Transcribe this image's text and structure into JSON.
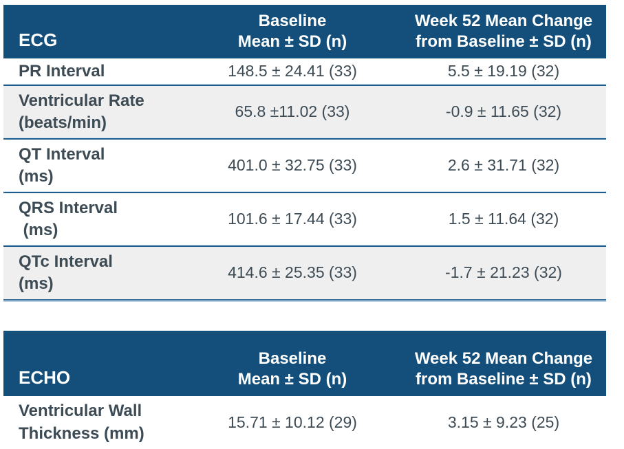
{
  "colors": {
    "header_bg": "#134F7A",
    "header_text": "#FFFFFF",
    "body_text": "#3D4B55",
    "stripe_bg": "#EFEFEF",
    "row_divider": "#1E5C8C",
    "table_bottom_border": "#356E9B"
  },
  "tables": [
    {
      "title": "ECG",
      "header": {
        "col1": "ECG",
        "col2": "Baseline\nMean ± SD (n)",
        "col3": "Week 52 Mean Change\nfrom Baseline ± SD (n)"
      },
      "rows": [
        {
          "label": "PR Interval",
          "baseline": "148.5 ± 24.41 (33)",
          "week52": "5.5 ± 19.19 (32)"
        },
        {
          "label": "Ventricular Rate\n(beats/min)",
          "baseline": "65.8 ±11.02 (33)",
          "week52": "-0.9 ± 11.65 (32)"
        },
        {
          "label": "QT Interval\n(ms)",
          "baseline": "401.0 ± 32.75 (33)",
          "week52": "2.6 ± 31.71 (32)"
        },
        {
          "label": "QRS Interval\n (ms)",
          "baseline": "101.6 ± 17.44 (33)",
          "week52": "1.5 ± 11.64 (32)"
        },
        {
          "label": "QTc Interval\n(ms)",
          "baseline": "414.6 ± 25.35 (33)",
          "week52": "-1.7 ± 21.23 (32)"
        }
      ]
    },
    {
      "title": "ECHO",
      "header": {
        "col1": "ECHO",
        "col2": "Baseline\nMean ± SD (n)",
        "col3": "Week 52 Mean Change\nfrom Baseline ± SD (n)"
      },
      "rows": [
        {
          "label": "Ventricular Wall\nThickness (mm)",
          "baseline": "15.71 ± 10.12 (29)",
          "week52": "3.15 ± 9.23 (25)"
        }
      ]
    }
  ]
}
